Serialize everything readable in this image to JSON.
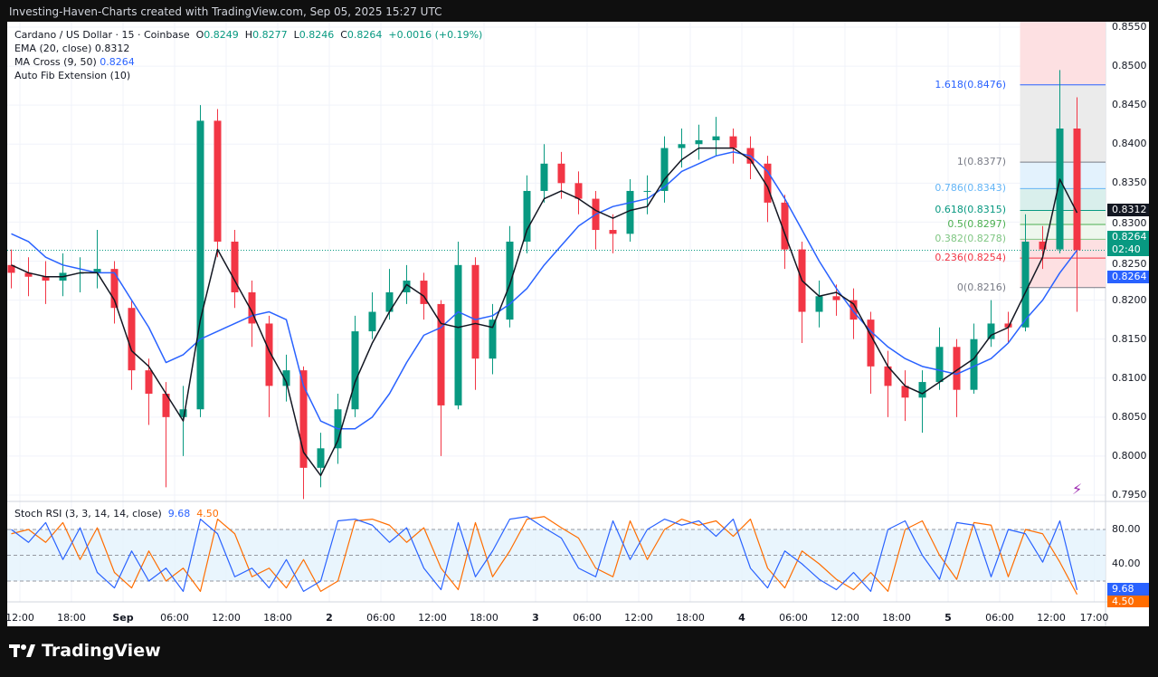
{
  "header": {
    "title": "Investing-Haven-Charts created with TradingView.com, Sep 05, 2025 15:27 UTC"
  },
  "legend": {
    "symbol": "Cardano / US Dollar · 15 · Coinbase",
    "o_label": "O",
    "o": "0.8249",
    "h_label": "H",
    "h": "0.8277",
    "l_label": "L",
    "l": "0.8246",
    "c_label": "C",
    "c": "0.8264",
    "change": "+0.0016 (+0.19%)",
    "ema_label": "EMA (20, close)",
    "ema_value": "0.8312",
    "ma_label": "MA Cross (9, 50)",
    "ma_value": "0.8264",
    "fib_label": "Auto Fib Extension (10)"
  },
  "badges": {
    "ema": "0.8312",
    "price": "0.8264",
    "countdown": "02:40",
    "ma": "0.8264",
    "stoch_k": "9.68",
    "stoch_d": "4.50"
  },
  "stoch": {
    "label": "Stoch RSI (3, 3, 14, 14, close)",
    "k_value": "9.68",
    "d_value": "4.50",
    "levels": [
      {
        "v": 80,
        "label": "80.00"
      },
      {
        "v": 40,
        "label": "40.00"
      }
    ]
  },
  "footer": {
    "brand": "TradingView"
  },
  "colors": {
    "up": "#089981",
    "down": "#f23645",
    "ema": "#131722",
    "ma": "#2962ff",
    "stoch_k": "#2962ff",
    "stoch_d": "#ff6d00"
  },
  "chart_data": {
    "type": "candlestick",
    "price_axis": [
      {
        "v": 0.855,
        "label": "0.8550"
      },
      {
        "v": 0.85,
        "label": "0.8500"
      },
      {
        "v": 0.845,
        "label": "0.8450"
      },
      {
        "v": 0.84,
        "label": "0.8400"
      },
      {
        "v": 0.835,
        "label": "0.8350"
      },
      {
        "v": 0.83,
        "label": "0.8300"
      },
      {
        "v": 0.825,
        "label": "0.8250"
      },
      {
        "v": 0.82,
        "label": "0.8200"
      },
      {
        "v": 0.815,
        "label": "0.8150"
      },
      {
        "v": 0.81,
        "label": "0.8100"
      },
      {
        "v": 0.805,
        "label": "0.8050"
      },
      {
        "v": 0.8,
        "label": "0.8000"
      },
      {
        "v": 0.795,
        "label": "0.7950"
      }
    ],
    "time_axis": [
      {
        "t": "08-31 12:00",
        "label": "12:00"
      },
      {
        "t": "08-31 18:00",
        "label": "18:00"
      },
      {
        "t": "09-01 00:00",
        "label": "Sep"
      },
      {
        "t": "09-01 06:00",
        "label": "06:00"
      },
      {
        "t": "09-01 12:00",
        "label": "12:00"
      },
      {
        "t": "09-01 18:00",
        "label": "18:00"
      },
      {
        "t": "09-02 00:00",
        "label": "2"
      },
      {
        "t": "09-02 06:00",
        "label": "06:00"
      },
      {
        "t": "09-02 12:00",
        "label": "12:00"
      },
      {
        "t": "09-02 18:00",
        "label": "18:00"
      },
      {
        "t": "09-03 00:00",
        "label": "3"
      },
      {
        "t": "09-03 06:00",
        "label": "06:00"
      },
      {
        "t": "09-03 12:00",
        "label": "12:00"
      },
      {
        "t": "09-03 18:00",
        "label": "18:00"
      },
      {
        "t": "09-04 00:00",
        "label": "4"
      },
      {
        "t": "09-04 06:00",
        "label": "06:00"
      },
      {
        "t": "09-04 12:00",
        "label": "12:00"
      },
      {
        "t": "09-04 18:00",
        "label": "18:00"
      },
      {
        "t": "09-05 00:00",
        "label": "5"
      },
      {
        "t": "09-05 06:00",
        "label": "06:00"
      },
      {
        "t": "09-05 12:00",
        "label": "12:00"
      },
      {
        "t": "09-05 17:00",
        "label": "17:00"
      }
    ],
    "candles": [
      [
        "08-31 11:00",
        0.8245,
        0.8265,
        0.8215,
        0.8235
      ],
      [
        "08-31 13:00",
        0.8235,
        0.8255,
        0.8205,
        0.823
      ],
      [
        "08-31 15:00",
        0.823,
        0.825,
        0.8195,
        0.8225
      ],
      [
        "08-31 17:00",
        0.8225,
        0.826,
        0.8205,
        0.8235
      ],
      [
        "08-31 19:00",
        0.8235,
        0.8255,
        0.821,
        0.8235
      ],
      [
        "08-31 21:00",
        0.8235,
        0.829,
        0.8215,
        0.824
      ],
      [
        "08-31 23:00",
        0.824,
        0.825,
        0.817,
        0.819
      ],
      [
        "09-01 01:00",
        0.819,
        0.82,
        0.8085,
        0.811
      ],
      [
        "09-01 03:00",
        0.811,
        0.8125,
        0.804,
        0.808
      ],
      [
        "09-01 05:00",
        0.808,
        0.8095,
        0.796,
        0.805
      ],
      [
        "09-01 07:00",
        0.805,
        0.809,
        0.8,
        0.806
      ],
      [
        "09-01 09:00",
        0.806,
        0.845,
        0.805,
        0.843
      ],
      [
        "09-01 11:00",
        0.843,
        0.8445,
        0.8255,
        0.8275
      ],
      [
        "09-01 13:00",
        0.8275,
        0.829,
        0.819,
        0.821
      ],
      [
        "09-01 15:00",
        0.821,
        0.8225,
        0.814,
        0.817
      ],
      [
        "09-01 17:00",
        0.817,
        0.818,
        0.805,
        0.809
      ],
      [
        "09-01 19:00",
        0.809,
        0.813,
        0.807,
        0.811
      ],
      [
        "09-01 21:00",
        0.811,
        0.8115,
        0.7945,
        0.7985
      ],
      [
        "09-01 23:00",
        0.7985,
        0.803,
        0.796,
        0.801
      ],
      [
        "09-02 01:00",
        0.801,
        0.808,
        0.799,
        0.806
      ],
      [
        "09-02 03:00",
        0.806,
        0.818,
        0.805,
        0.816
      ],
      [
        "09-02 05:00",
        0.816,
        0.821,
        0.815,
        0.8185
      ],
      [
        "09-02 07:00",
        0.8185,
        0.824,
        0.8175,
        0.821
      ],
      [
        "09-02 09:00",
        0.821,
        0.8245,
        0.8195,
        0.8225
      ],
      [
        "09-02 11:00",
        0.8225,
        0.8235,
        0.8175,
        0.8195
      ],
      [
        "09-02 13:00",
        0.8195,
        0.82,
        0.8,
        0.8065
      ],
      [
        "09-02 15:00",
        0.8065,
        0.8275,
        0.806,
        0.8245
      ],
      [
        "09-02 17:00",
        0.8245,
        0.8255,
        0.8085,
        0.8125
      ],
      [
        "09-02 19:00",
        0.8125,
        0.8195,
        0.8105,
        0.8175
      ],
      [
        "09-02 21:00",
        0.8175,
        0.8295,
        0.8165,
        0.8275
      ],
      [
        "09-02 23:00",
        0.8275,
        0.836,
        0.826,
        0.834
      ],
      [
        "09-03 01:00",
        0.834,
        0.84,
        0.8325,
        0.8375
      ],
      [
        "09-03 03:00",
        0.8375,
        0.839,
        0.833,
        0.835
      ],
      [
        "09-03 05:00",
        0.835,
        0.8365,
        0.831,
        0.833
      ],
      [
        "09-03 07:00",
        0.833,
        0.834,
        0.8265,
        0.829
      ],
      [
        "09-03 09:00",
        0.829,
        0.831,
        0.826,
        0.8285
      ],
      [
        "09-03 11:00",
        0.8285,
        0.8355,
        0.8275,
        0.834
      ],
      [
        "09-03 13:00",
        0.834,
        0.836,
        0.831,
        0.834
      ],
      [
        "09-03 15:00",
        0.834,
        0.841,
        0.8325,
        0.8395
      ],
      [
        "09-03 17:00",
        0.8395,
        0.842,
        0.837,
        0.84
      ],
      [
        "09-03 19:00",
        0.84,
        0.8425,
        0.838,
        0.8405
      ],
      [
        "09-03 21:00",
        0.8405,
        0.8435,
        0.8385,
        0.841
      ],
      [
        "09-03 23:00",
        0.841,
        0.842,
        0.8375,
        0.8395
      ],
      [
        "09-04 01:00",
        0.8395,
        0.841,
        0.8355,
        0.8375
      ],
      [
        "09-04 03:00",
        0.8375,
        0.8385,
        0.83,
        0.8325
      ],
      [
        "09-04 05:00",
        0.8325,
        0.8335,
        0.824,
        0.8265
      ],
      [
        "09-04 07:00",
        0.8265,
        0.8275,
        0.8145,
        0.8185
      ],
      [
        "09-04 09:00",
        0.8185,
        0.8225,
        0.8165,
        0.8205
      ],
      [
        "09-04 11:00",
        0.8205,
        0.822,
        0.818,
        0.82
      ],
      [
        "09-04 13:00",
        0.82,
        0.8215,
        0.815,
        0.8175
      ],
      [
        "09-04 15:00",
        0.8175,
        0.8185,
        0.808,
        0.8115
      ],
      [
        "09-04 17:00",
        0.8115,
        0.8135,
        0.805,
        0.809
      ],
      [
        "09-04 19:00",
        0.809,
        0.811,
        0.8045,
        0.8075
      ],
      [
        "09-04 21:00",
        0.8075,
        0.811,
        0.803,
        0.8095
      ],
      [
        "09-04 23:00",
        0.8095,
        0.8165,
        0.8085,
        0.814
      ],
      [
        "09-05 01:00",
        0.814,
        0.815,
        0.805,
        0.8085
      ],
      [
        "09-05 03:00",
        0.8085,
        0.817,
        0.808,
        0.815
      ],
      [
        "09-05 05:00",
        0.815,
        0.82,
        0.814,
        0.817
      ],
      [
        "09-05 07:00",
        0.817,
        0.8185,
        0.8145,
        0.8165
      ],
      [
        "09-05 09:00",
        0.8165,
        0.831,
        0.816,
        0.8275
      ],
      [
        "09-05 11:00",
        0.8275,
        0.8295,
        0.824,
        0.8265
      ],
      [
        "09-05 13:00",
        0.8265,
        0.8495,
        0.826,
        0.842
      ],
      [
        "09-05 15:00",
        0.842,
        0.846,
        0.8185,
        0.8264
      ]
    ],
    "ema20": [
      0.8245,
      0.8235,
      0.823,
      0.823,
      0.8235,
      0.8235,
      0.82,
      0.8135,
      0.8115,
      0.808,
      0.8045,
      0.8175,
      0.8265,
      0.8225,
      0.8185,
      0.8135,
      0.8095,
      0.8005,
      0.7975,
      0.802,
      0.8095,
      0.8145,
      0.8185,
      0.822,
      0.8205,
      0.817,
      0.8165,
      0.817,
      0.8165,
      0.822,
      0.829,
      0.833,
      0.834,
      0.833,
      0.8315,
      0.8305,
      0.8315,
      0.832,
      0.8355,
      0.838,
      0.8395,
      0.8395,
      0.8395,
      0.838,
      0.8345,
      0.8285,
      0.8225,
      0.8205,
      0.821,
      0.8195,
      0.8155,
      0.8115,
      0.809,
      0.808,
      0.8095,
      0.811,
      0.8125,
      0.8155,
      0.8165,
      0.821,
      0.8255,
      0.8355,
      0.8312
    ],
    "ma50": [
      0.8285,
      0.8275,
      0.8255,
      0.8245,
      0.824,
      0.8235,
      0.8235,
      0.82,
      0.8165,
      0.812,
      0.813,
      0.815,
      0.816,
      0.817,
      0.818,
      0.8185,
      0.8175,
      0.809,
      0.8045,
      0.8035,
      0.8035,
      0.805,
      0.808,
      0.812,
      0.8155,
      0.8165,
      0.8185,
      0.8175,
      0.818,
      0.8195,
      0.8215,
      0.8245,
      0.827,
      0.8295,
      0.831,
      0.832,
      0.8325,
      0.833,
      0.8345,
      0.8365,
      0.8375,
      0.8385,
      0.839,
      0.8385,
      0.8365,
      0.833,
      0.829,
      0.825,
      0.8215,
      0.8185,
      0.816,
      0.814,
      0.8125,
      0.8115,
      0.811,
      0.8105,
      0.8115,
      0.8125,
      0.8145,
      0.8175,
      0.82,
      0.8235,
      0.8264
    ],
    "stoch_k": [
      80,
      65,
      88,
      45,
      82,
      30,
      12,
      55,
      20,
      35,
      8,
      92,
      75,
      25,
      35,
      12,
      45,
      8,
      20,
      90,
      92,
      85,
      65,
      82,
      35,
      10,
      88,
      25,
      55,
      92,
      95,
      82,
      70,
      35,
      25,
      90,
      45,
      80,
      92,
      85,
      90,
      72,
      92,
      35,
      12,
      55,
      40,
      22,
      10,
      30,
      8,
      80,
      90,
      50,
      22,
      88,
      85,
      25,
      80,
      75,
      42,
      90,
      9.68
    ],
    "stoch_d": [
      75,
      80,
      65,
      88,
      45,
      82,
      30,
      12,
      55,
      20,
      35,
      8,
      92,
      75,
      25,
      35,
      12,
      45,
      8,
      20,
      90,
      92,
      85,
      65,
      82,
      35,
      10,
      88,
      25,
      55,
      92,
      95,
      82,
      70,
      35,
      25,
      90,
      45,
      80,
      92,
      85,
      90,
      72,
      92,
      35,
      12,
      55,
      40,
      22,
      10,
      30,
      8,
      80,
      90,
      50,
      22,
      88,
      85,
      25,
      80,
      75,
      42,
      4.5
    ],
    "fib": {
      "start": "09-05 09:00",
      "levels": [
        {
          "ratio": "1.618",
          "price": 0.8476,
          "label": "1.618(0.8476)",
          "color": "#2962ff",
          "fill": "#dde5ff"
        },
        {
          "ratio": "1",
          "price": 0.8377,
          "label": "1(0.8377)",
          "color": "#787b86",
          "fill": "#ebebeb"
        },
        {
          "ratio": "0.786",
          "price": 0.8343,
          "label": "0.786(0.8343)",
          "color": "#64b5f6",
          "fill": "#e3f2fd"
        },
        {
          "ratio": "0.618",
          "price": 0.8315,
          "label": "0.618(0.8315)",
          "color": "#089981",
          "fill": "#d9efec"
        },
        {
          "ratio": "0.5",
          "price": 0.8297,
          "label": "0.5(0.8297)",
          "color": "#4caf50",
          "fill": "#e4f3e4"
        },
        {
          "ratio": "0.382",
          "price": 0.8278,
          "label": "0.382(0.8278)",
          "color": "#81c784",
          "fill": "#eef7ee"
        },
        {
          "ratio": "0.236",
          "price": 0.8254,
          "label": "0.236(0.8254)",
          "color": "#f23645",
          "fill": "#fde0e2"
        },
        {
          "ratio": "0",
          "price": 0.8216,
          "label": "0(0.8216)",
          "color": "#787b86",
          "fill": "#fde0e2"
        }
      ],
      "top_fill": "#fde0e2"
    },
    "last_price": 0.8264
  }
}
